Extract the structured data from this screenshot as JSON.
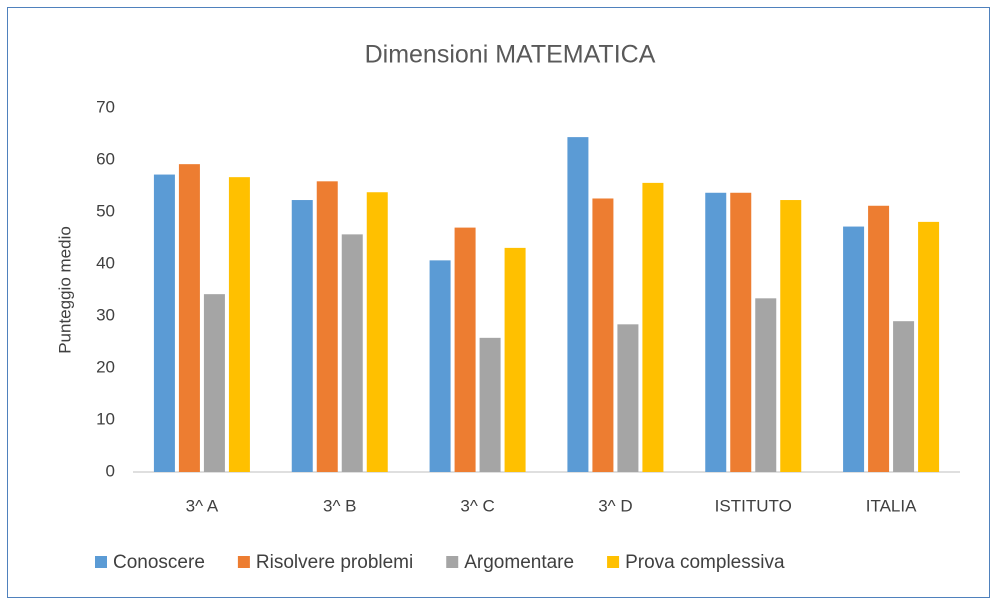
{
  "chart_data": {
    "type": "bar",
    "title": "Dimensioni MATEMATICA",
    "y_label": "Punteggio medio",
    "categories": [
      "3^ A",
      "3^ B",
      "3^ C",
      "3^ D",
      "ISTITUTO",
      "ITALIA"
    ],
    "series": [
      {
        "name": "Conoscere",
        "color": "#5b9bd5",
        "values": [
          57.2,
          52.3,
          40.7,
          64.4,
          53.7,
          47.2
        ]
      },
      {
        "name": "Risolvere problemi",
        "color": "#ed7d31",
        "values": [
          59.2,
          55.9,
          47.0,
          52.6,
          53.7,
          51.2
        ]
      },
      {
        "name": "Argomentare",
        "color": "#a5a5a5",
        "values": [
          34.2,
          45.7,
          25.8,
          28.4,
          33.4,
          29.0
        ]
      },
      {
        "name": "Prova complessiva",
        "color": "#ffc000",
        "values": [
          56.7,
          53.8,
          43.1,
          55.6,
          52.3,
          48.1
        ]
      }
    ],
    "ylim": [
      0,
      70
    ],
    "yticks": [
      0,
      10,
      20,
      30,
      40,
      50,
      60,
      70
    ],
    "grid": false,
    "legend": "bottom"
  }
}
